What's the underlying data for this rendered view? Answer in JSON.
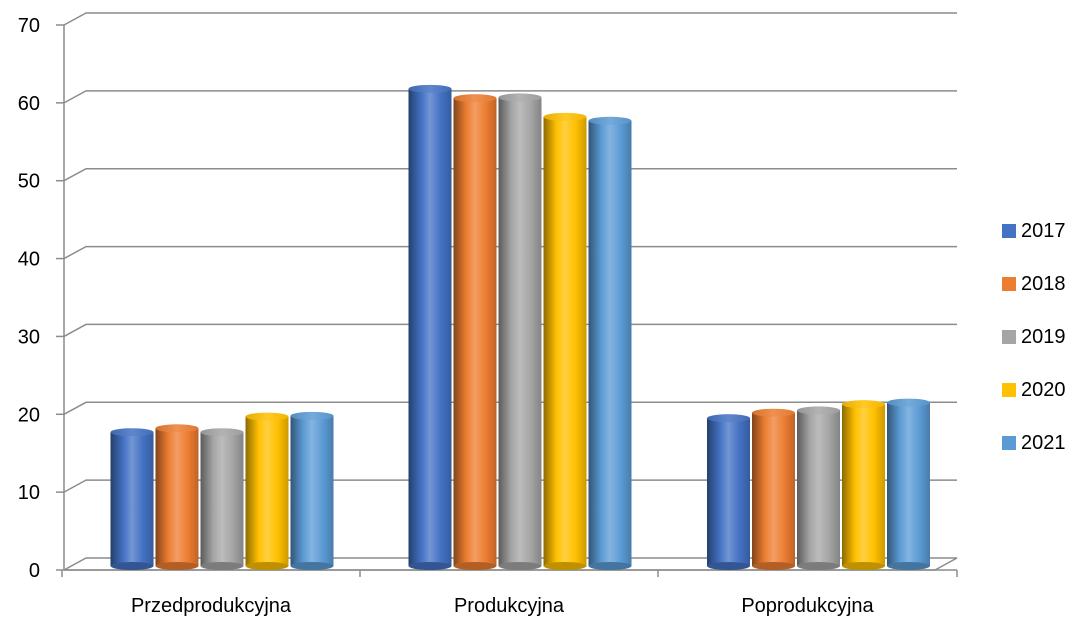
{
  "chart_data": {
    "type": "bar",
    "title": "",
    "xlabel": "",
    "ylabel": "",
    "ylim": [
      0,
      70
    ],
    "yticks": [
      0,
      10,
      20,
      30,
      40,
      50,
      60,
      70
    ],
    "grid": true,
    "legend_position": "right",
    "categories": [
      "Przedprodukcyjna",
      "Produkcyjna",
      "Poprodukcyjna"
    ],
    "series": [
      {
        "name": "2017",
        "color": "#4472C4",
        "values": [
          17.7,
          61.8,
          19.5
        ]
      },
      {
        "name": "2018",
        "color": "#ED7D31",
        "values": [
          18.2,
          60.6,
          20.2
        ]
      },
      {
        "name": "2019",
        "color": "#A5A5A5",
        "values": [
          17.7,
          60.7,
          20.5
        ]
      },
      {
        "name": "2020",
        "color": "#FFC000",
        "values": [
          19.7,
          58.2,
          21.3
        ]
      },
      {
        "name": "2021",
        "color": "#5B9BD5",
        "values": [
          19.8,
          57.7,
          21.5
        ]
      }
    ]
  }
}
